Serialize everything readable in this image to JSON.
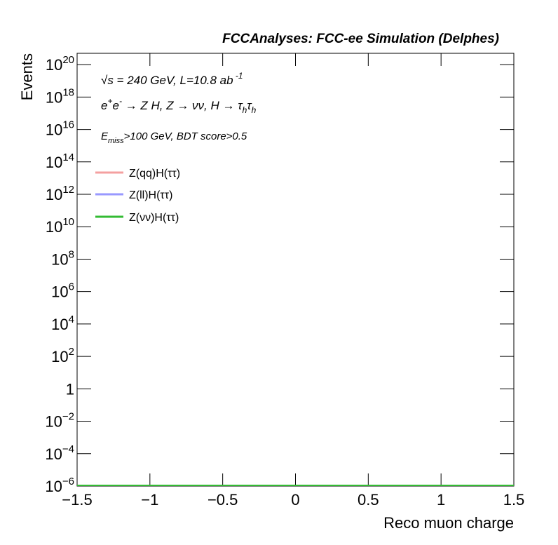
{
  "chart_data": {
    "type": "histogram",
    "title": "FCCAnalyses: FCC-ee Simulation (Delphes)",
    "x_label": "Reco muon charge",
    "y_label": "Events",
    "log_y": true,
    "xlim": [
      -1.5,
      1.5
    ],
    "xticks": [
      {
        "value": -1.5,
        "label": "−1.5"
      },
      {
        "value": -1,
        "label": "−1"
      },
      {
        "value": -0.5,
        "label": "−0.5"
      },
      0,
      0.5,
      1,
      1.5
    ],
    "ylim": [
      1e-06,
      5e+20
    ],
    "yticks": [
      {
        "value": 1e-06,
        "label": "10",
        "exponent": "−6"
      },
      {
        "value": 0.0001,
        "label": "10",
        "exponent": "−4"
      },
      {
        "value": 0.01,
        "label": "10",
        "exponent": "−2"
      },
      1,
      {
        "value": 100.0,
        "label": "10",
        "exponent": "2"
      },
      {
        "value": 10000.0,
        "label": "10",
        "exponent": "4"
      },
      {
        "value": 1000000.0,
        "label": "10",
        "exponent": "6"
      },
      {
        "value": 100000000.0,
        "label": "10",
        "exponent": "8"
      },
      {
        "value": 10000000000.0,
        "label": "10",
        "exponent": "10"
      },
      {
        "value": 1000000000000.0,
        "label": "10",
        "exponent": "12"
      },
      {
        "value": 100000000000000.0,
        "label": "10",
        "exponent": "14"
      },
      {
        "value": 1e+16,
        "label": "10",
        "exponent": "16"
      },
      {
        "value": 1e+18,
        "label": "10",
        "exponent": "18"
      },
      {
        "value": 1e+20,
        "label": "10",
        "exponent": "20"
      }
    ],
    "annotations": [
      {
        "size": 17,
        "parts": [
          {
            "t": "√s = 240 GeV, L=10.8 ab"
          },
          {
            "t": " -1",
            "shift": "sup"
          }
        ]
      },
      {
        "size": 17,
        "parts": [
          {
            "t": "e"
          },
          {
            "t": "+",
            "shift": "sup"
          },
          {
            "t": "e"
          },
          {
            "t": "-",
            "shift": "sup"
          },
          {
            "t": " → Z H, Z  → νν, H → τ"
          },
          {
            "t": "h",
            "shift": "sub"
          },
          {
            "t": "τ"
          },
          {
            "t": "h",
            "shift": "sub"
          }
        ]
      },
      {
        "size": 15,
        "parts": [
          {
            "t": "E"
          },
          {
            "t": "miss",
            "shift": "sub"
          },
          {
            "t": ">100 GeV, BDT score>0.5"
          }
        ]
      }
    ],
    "series": [
      {
        "name": "Z(qq)H(ττ)",
        "color": "#f4a0a0"
      },
      {
        "name": "Z(ll)H(ττ)",
        "color": "#9999ff"
      },
      {
        "name": "Z(νν)H(ττ)",
        "color": "#33bb33"
      }
    ]
  }
}
